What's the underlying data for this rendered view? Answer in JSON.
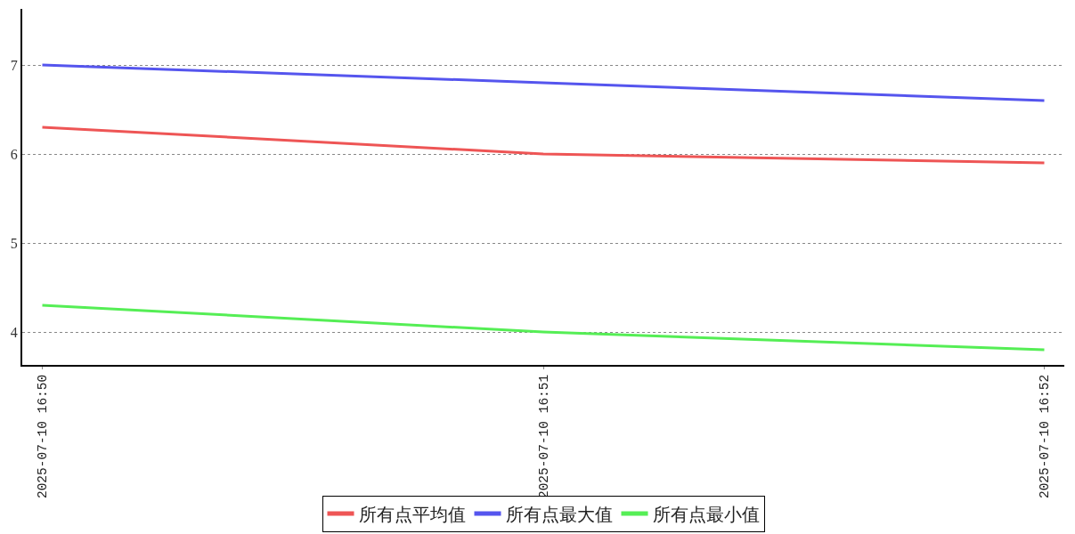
{
  "chart_data": {
    "type": "line",
    "categories": [
      "2025-07-10 16:50",
      "2025-07-10 16:51",
      "2025-07-10 16:52"
    ],
    "series": [
      {
        "name": "所有点平均值",
        "color": "#ee5555",
        "values": [
          6.3,
          6.0,
          5.9
        ]
      },
      {
        "name": "所有点最大值",
        "color": "#5555ee",
        "values": [
          7.0,
          6.8,
          6.6
        ]
      },
      {
        "name": "所有点最小值",
        "color": "#55ee55",
        "values": [
          4.3,
          4.0,
          3.8
        ]
      }
    ],
    "ylim": [
      3.63,
      7.63
    ],
    "yticks": [
      4,
      5,
      6,
      7
    ],
    "grid": "y",
    "legend": "bottom",
    "marker": "none",
    "line_style": "solid"
  }
}
